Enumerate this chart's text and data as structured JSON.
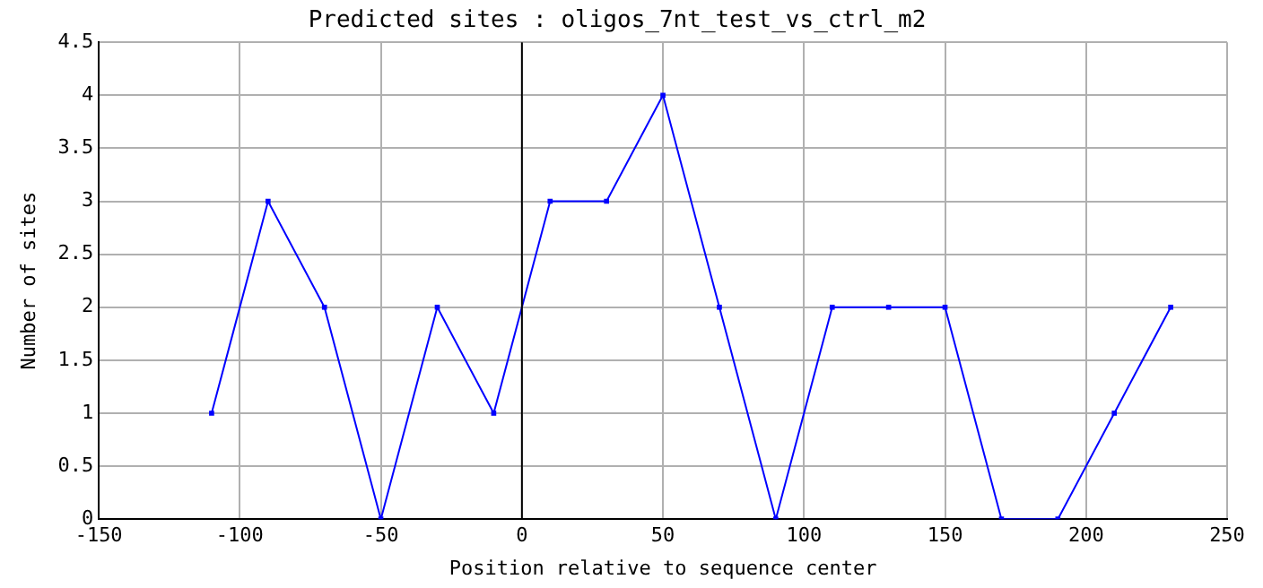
{
  "chart_data": {
    "type": "line",
    "title": "Predicted sites : oligos_7nt_test_vs_ctrl_m2",
    "xlabel": "Position relative to sequence center",
    "ylabel": "Number of sites",
    "x": [
      -110,
      -90,
      -70,
      -50,
      -30,
      -10,
      10,
      30,
      50,
      70,
      90,
      110,
      130,
      150,
      170,
      190,
      210,
      230
    ],
    "series": [
      {
        "color": "#0000ff",
        "values": [
          1,
          3,
          2,
          0,
          2,
          1,
          3,
          3,
          4,
          2,
          0,
          2,
          2,
          2,
          0,
          0,
          1,
          2
        ]
      }
    ],
    "xlim": [
      -150,
      250
    ],
    "xticks": [
      -150,
      -100,
      -50,
      0,
      50,
      100,
      150,
      200,
      250
    ],
    "ylim": [
      0,
      4.5
    ],
    "yticks": [
      0,
      0.5,
      1,
      1.5,
      2,
      2.5,
      3,
      3.5,
      4,
      4.5
    ],
    "grid": true,
    "legend": false,
    "marker": "square",
    "line_style": "solid",
    "ref_lines": [
      {
        "axis": "x",
        "value": 0,
        "color": "#000000"
      }
    ]
  }
}
